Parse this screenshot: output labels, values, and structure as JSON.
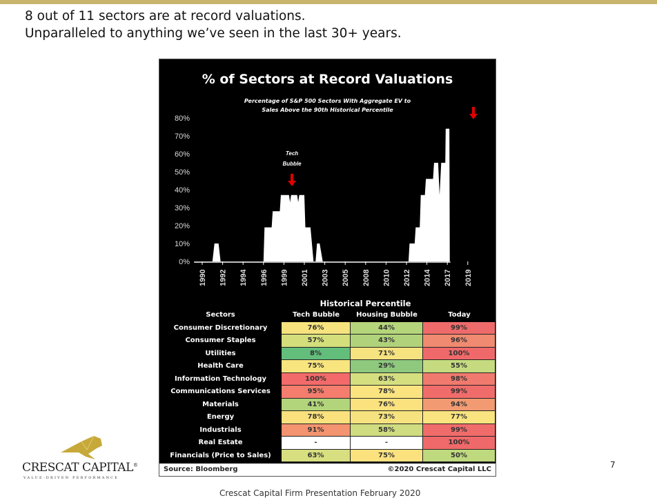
{
  "slide": {
    "headline": [
      "8 out of 11 sectors are at record valuations.",
      "Unparalleled to anything we’ve seen in the last 30+ years."
    ],
    "page_number": "7",
    "footer": "Crescat Capital Firm Presentation February 2020",
    "logo": {
      "name": "CRESCAT CAPITAL",
      "reg": "®",
      "tagline": "VALUE-DRIVEN PERFORMANCE"
    },
    "colors": {
      "top_bar": "#c9b46e",
      "logo_gold": "#c7a93a",
      "arrow": "#e00000"
    }
  },
  "chart_data": {
    "type": "area",
    "title": "% of Sectors at Record Valuations",
    "subtitle": [
      "Percentage of S&P 500 Sectors With Aggregate EV to",
      "Sales Above the 90th Historical Percentile"
    ],
    "annotation": [
      "Tech",
      "Bubble"
    ],
    "ylabel": "",
    "xlabel": "",
    "ylim": [
      0,
      80
    ],
    "yticks": [
      "0%",
      "10%",
      "20%",
      "30%",
      "40%",
      "50%",
      "60%",
      "70%",
      "80%"
    ],
    "xtick_labels": [
      "1990",
      "1992",
      "1994",
      "1996",
      "1999",
      "2001",
      "2003",
      "2005",
      "2008",
      "2010",
      "2012",
      "2014",
      "2017",
      "2019"
    ],
    "x_note": "x is tick-index position (0 = 1990 label, 13 = 2019 label)",
    "points": [
      [
        -0.4,
        0
      ],
      [
        0.5,
        0
      ],
      [
        0.6,
        10
      ],
      [
        0.8,
        10
      ],
      [
        0.9,
        0
      ],
      [
        3.0,
        0
      ],
      [
        3.05,
        19
      ],
      [
        3.4,
        19
      ],
      [
        3.45,
        28
      ],
      [
        3.8,
        28
      ],
      [
        3.85,
        37
      ],
      [
        4.25,
        37
      ],
      [
        4.3,
        33
      ],
      [
        4.35,
        37
      ],
      [
        4.65,
        37
      ],
      [
        4.7,
        33
      ],
      [
        4.75,
        37
      ],
      [
        5.0,
        37
      ],
      [
        5.05,
        19
      ],
      [
        5.3,
        19
      ],
      [
        5.45,
        0
      ],
      [
        5.55,
        0
      ],
      [
        5.62,
        10
      ],
      [
        5.75,
        10
      ],
      [
        5.9,
        0
      ],
      [
        10.1,
        0
      ],
      [
        10.15,
        10
      ],
      [
        10.4,
        10
      ],
      [
        10.45,
        19
      ],
      [
        10.65,
        19
      ],
      [
        10.7,
        37
      ],
      [
        10.9,
        37
      ],
      [
        10.95,
        46
      ],
      [
        11.3,
        46
      ],
      [
        11.35,
        55
      ],
      [
        11.55,
        55
      ],
      [
        11.62,
        37
      ],
      [
        11.7,
        55
      ],
      [
        11.9,
        55
      ],
      [
        11.92,
        74
      ],
      [
        12.1,
        74
      ],
      [
        12.12,
        0
      ]
    ],
    "table": {
      "title": "Historical Percentile",
      "columns": [
        "Sectors",
        "Tech Bubble",
        "Housing Bubble",
        "Today"
      ],
      "rows": [
        {
          "sector": "Consumer Discretionary",
          "values": [
            "76%",
            "44%",
            "99%"
          ],
          "colors": [
            "#f6e37e",
            "#b5d57a",
            "#ef6b6b"
          ]
        },
        {
          "sector": "Consumer Staples",
          "values": [
            "57%",
            "43%",
            "96%"
          ],
          "colors": [
            "#d4df7c",
            "#b0d27a",
            "#f08a70"
          ]
        },
        {
          "sector": "Utilities",
          "values": [
            "8%",
            "71%",
            "100%"
          ],
          "colors": [
            "#63be7b",
            "#f6e27f",
            "#f0696a"
          ]
        },
        {
          "sector": "Health Care",
          "values": [
            "75%",
            "29%",
            "55%"
          ],
          "colors": [
            "#f8e57e",
            "#8ec97d",
            "#c6db7f"
          ]
        },
        {
          "sector": "Information Technology",
          "values": [
            "100%",
            "63%",
            "98%"
          ],
          "colors": [
            "#f26a6a",
            "#d5df80",
            "#f07a6e"
          ]
        },
        {
          "sector": "Communications Services",
          "values": [
            "95%",
            "78%",
            "99%"
          ],
          "colors": [
            "#f47d6e",
            "#fbe47f",
            "#f06c6b"
          ]
        },
        {
          "sector": "Materials",
          "values": [
            "41%",
            "76%",
            "94%"
          ],
          "colors": [
            "#b2d47b",
            "#fbe27f",
            "#f29a72"
          ]
        },
        {
          "sector": "Energy",
          "values": [
            "78%",
            "73%",
            "77%"
          ],
          "colors": [
            "#fbe17e",
            "#f6e27f",
            "#fae47f"
          ]
        },
        {
          "sector": "Industrials",
          "values": [
            "91%",
            "58%",
            "99%"
          ],
          "colors": [
            "#f4936f",
            "#cfdc7f",
            "#f06c6b"
          ]
        },
        {
          "sector": "Real Estate",
          "values": [
            "-",
            "-",
            "100%"
          ],
          "colors": [
            "#ffffff",
            "#ffffff",
            "#f0696a"
          ]
        },
        {
          "sector": "Financials (Price to Sales)",
          "values": [
            "63%",
            "75%",
            "50%"
          ],
          "colors": [
            "#d8df80",
            "#fbe27f",
            "#bfd97e"
          ]
        }
      ],
      "source": "Source: Bloomberg",
      "copyright": "©2020 Crescat Capital LLC"
    }
  }
}
